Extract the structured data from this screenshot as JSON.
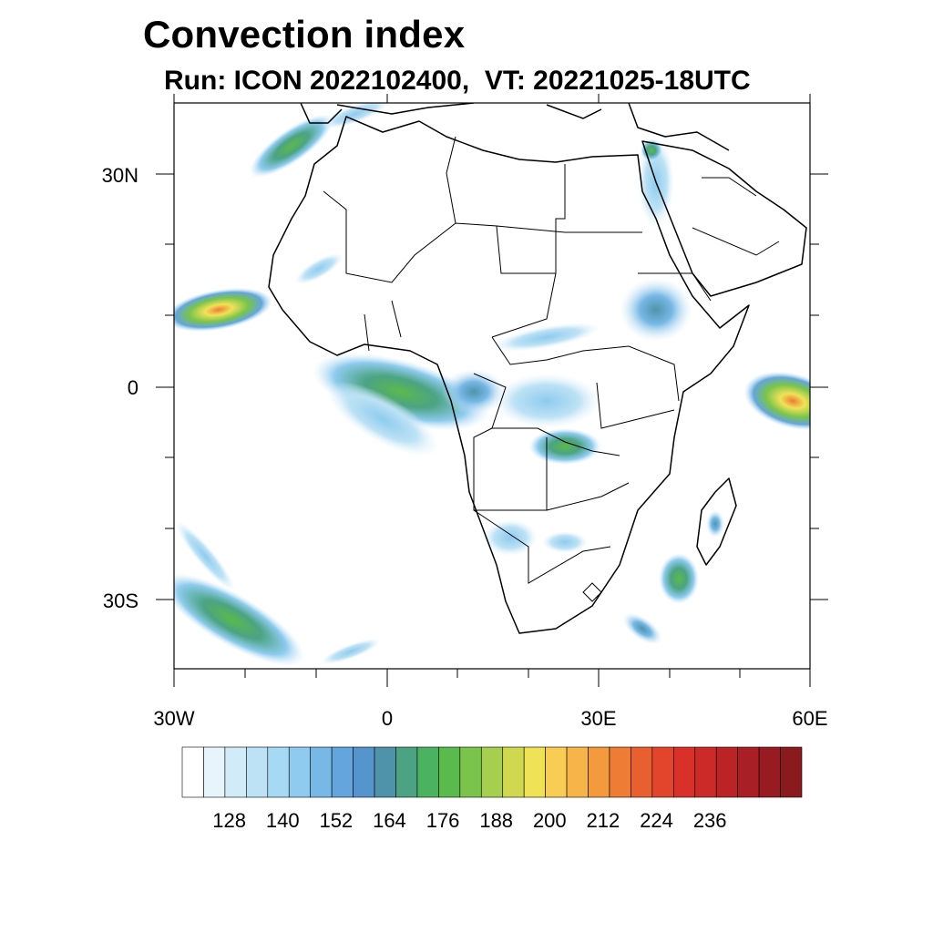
{
  "title": "Convection index",
  "subtitle": "Run: ICON 2022102400,  VT: 20221025-18UTC",
  "map": {
    "lon_range": [
      -30,
      60
    ],
    "lat_range": [
      -40,
      40
    ],
    "lat_labels": [
      "30N",
      "0",
      "30S"
    ],
    "lon_labels": [
      "30W",
      "0",
      "30E",
      "60E"
    ]
  },
  "colorbar": {
    "colors": [
      "#ffffff",
      "#e8f4fc",
      "#d2ebf8",
      "#bde2f5",
      "#a6d9f3",
      "#8ecbee",
      "#78b8e6",
      "#63a5dc",
      "#5594cd",
      "#4f93aa",
      "#4ba383",
      "#4bb262",
      "#5bba4c",
      "#7ac44b",
      "#a6cf4f",
      "#cfd84f",
      "#f0e257",
      "#f9cd53",
      "#f7b449",
      "#f39a3f",
      "#ee7c34",
      "#e96030",
      "#e2452c",
      "#d93129",
      "#cc2a29",
      "#bb2327",
      "#aa1f25",
      "#981b22",
      "#8a1a1e"
    ],
    "labels": [
      "128",
      "140",
      "152",
      "164",
      "176",
      "188",
      "200",
      "212",
      "224",
      "236"
    ]
  },
  "chart_data": {
    "type": "heatmap",
    "title": "Convection index",
    "subtitle": "Run: ICON 2022102400,  VT: 20221025-18UTC",
    "x_axis": {
      "range": [
        -30,
        60
      ],
      "ticks": [
        "30W",
        "0",
        "30E",
        "60E"
      ]
    },
    "y_axis": {
      "range": [
        -40,
        40
      ],
      "ticks": [
        "30N",
        "0",
        "30S"
      ]
    },
    "colorbar_labels": [
      128,
      140,
      152,
      164,
      176,
      188,
      200,
      212,
      224,
      236
    ]
  }
}
